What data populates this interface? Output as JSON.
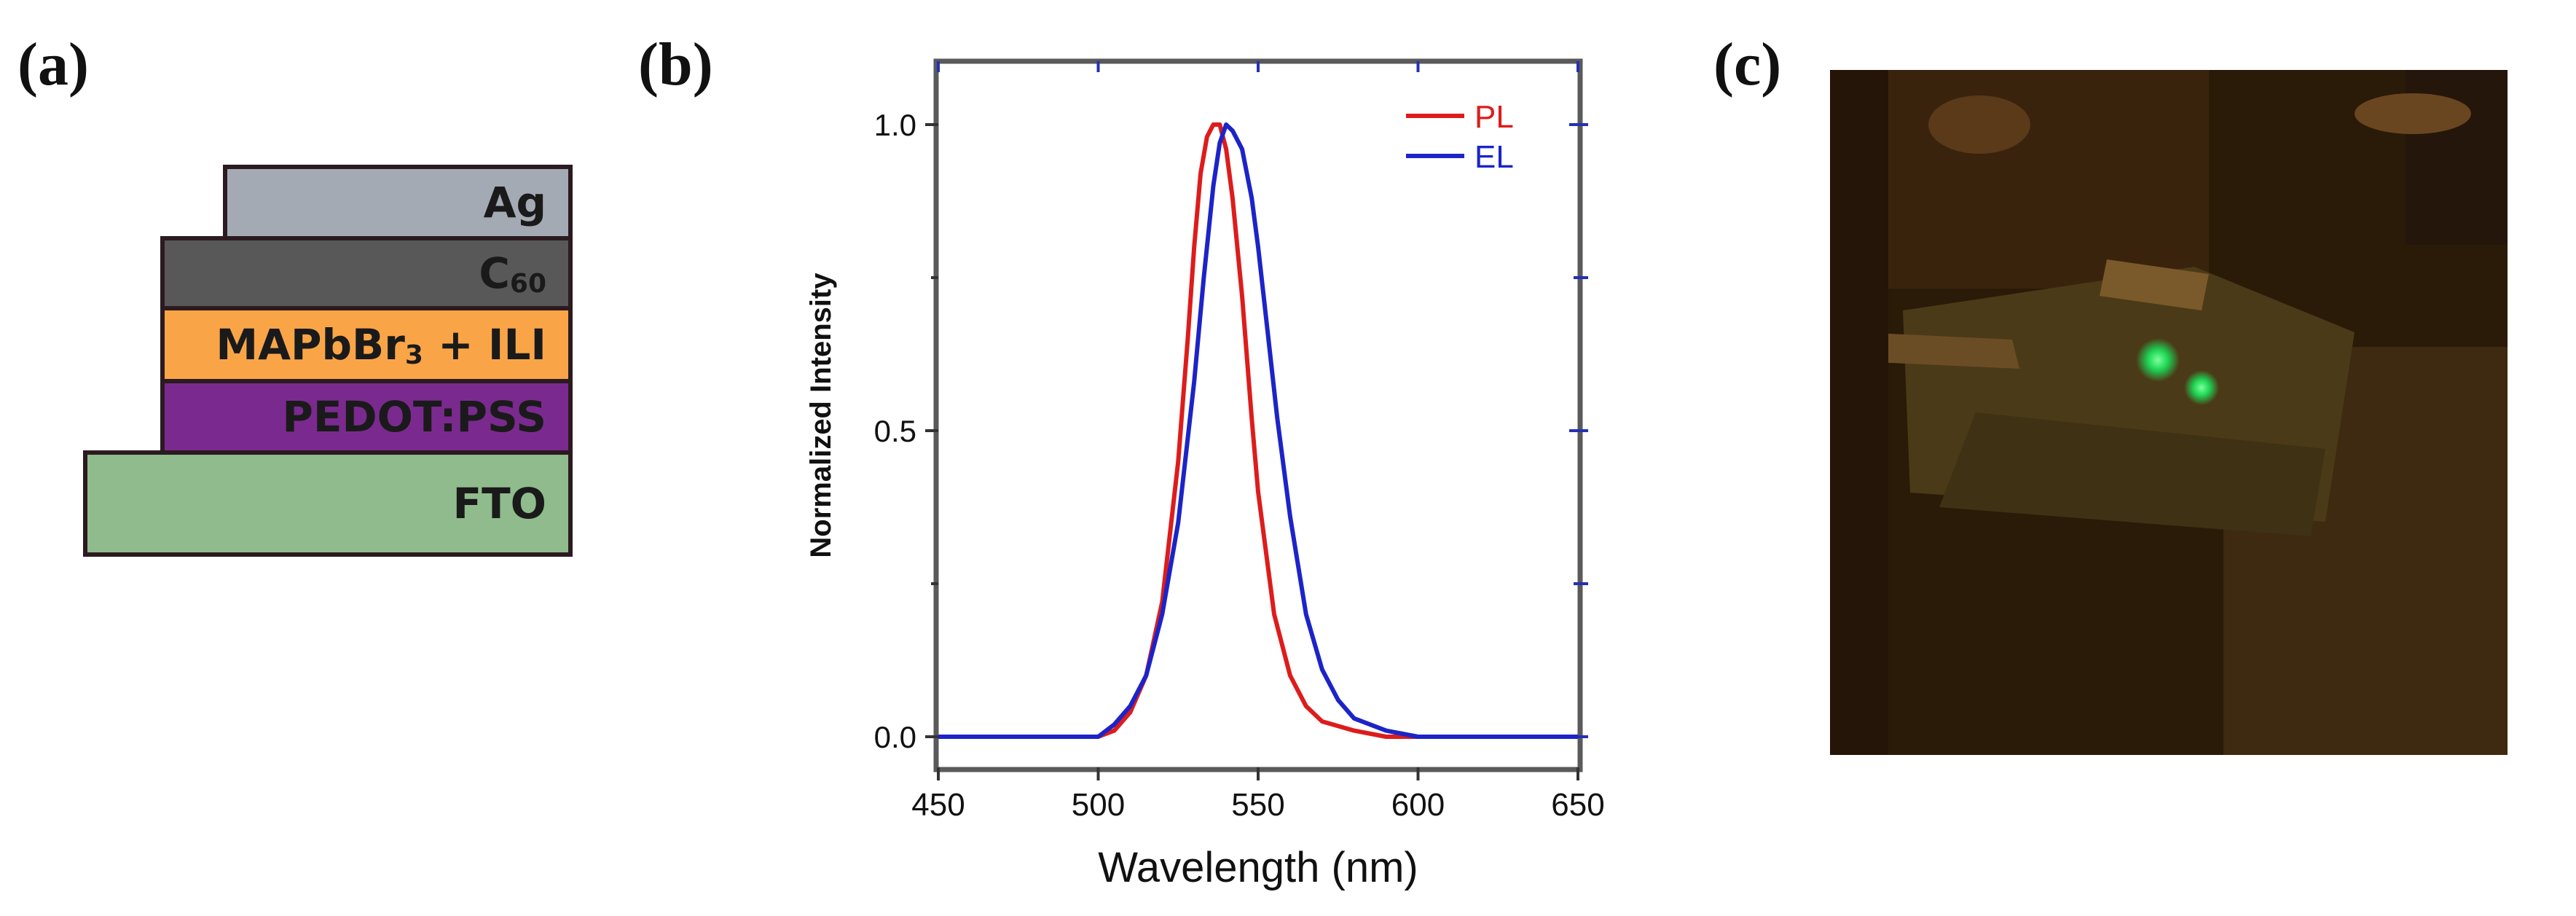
{
  "panel_labels": {
    "a": "(a)",
    "b": "(b)",
    "c": "(c)"
  },
  "device_stack": {
    "layers": [
      {
        "main": "Ag",
        "sub": "",
        "tail": "",
        "color": "#a4aab3"
      },
      {
        "main": "C",
        "sub": "60",
        "tail": "",
        "color": "#585858"
      },
      {
        "main": "MAPbBr",
        "sub": "3",
        "tail": " + ILI",
        "color": "#f9a547"
      },
      {
        "main": "PEDOT:PSS",
        "sub": "",
        "tail": "",
        "color": "#7a2a8e"
      },
      {
        "main": "FTO",
        "sub": "",
        "tail": "",
        "color": "#8fbb8d"
      }
    ]
  },
  "chart_data": {
    "type": "line",
    "xlabel": "Wavelength (nm)",
    "ylabel": "Normalized Intensity",
    "xlim": [
      450,
      650
    ],
    "ylim": [
      -0.05,
      1.1
    ],
    "xticks": [
      "450",
      "500",
      "550",
      "600",
      "650"
    ],
    "yticks": [
      "0.0",
      "0.5",
      "1.0"
    ],
    "legend_position": "top-right",
    "series": [
      {
        "name": "PL",
        "color": "#dd1c1c",
        "x": [
          450,
          480,
          500,
          505,
          510,
          515,
          520,
          525,
          528,
          530,
          532,
          534,
          536,
          538,
          540,
          542,
          545,
          548,
          550,
          555,
          560,
          565,
          570,
          580,
          590,
          600,
          650
        ],
        "y": [
          0.0,
          0.0,
          0.0,
          0.01,
          0.04,
          0.1,
          0.22,
          0.45,
          0.65,
          0.8,
          0.92,
          0.98,
          1.0,
          1.0,
          0.96,
          0.88,
          0.72,
          0.52,
          0.4,
          0.2,
          0.1,
          0.05,
          0.025,
          0.01,
          0.0,
          0.0,
          0.0
        ]
      },
      {
        "name": "EL",
        "color": "#1c24c8",
        "x": [
          450,
          460,
          470,
          480,
          490,
          500,
          505,
          510,
          515,
          520,
          525,
          530,
          533,
          536,
          538,
          540,
          542,
          545,
          548,
          550,
          553,
          556,
          560,
          565,
          570,
          575,
          580,
          590,
          600,
          620,
          650
        ],
        "y": [
          0.0,
          0.0,
          0.0,
          0.0,
          0.0,
          0.0,
          0.02,
          0.05,
          0.1,
          0.2,
          0.35,
          0.58,
          0.75,
          0.9,
          0.97,
          1.0,
          0.99,
          0.96,
          0.88,
          0.8,
          0.66,
          0.52,
          0.36,
          0.2,
          0.11,
          0.06,
          0.03,
          0.01,
          0.0,
          0.0,
          0.0
        ]
      }
    ]
  },
  "photo": {
    "description_color": "#2a1a08"
  }
}
